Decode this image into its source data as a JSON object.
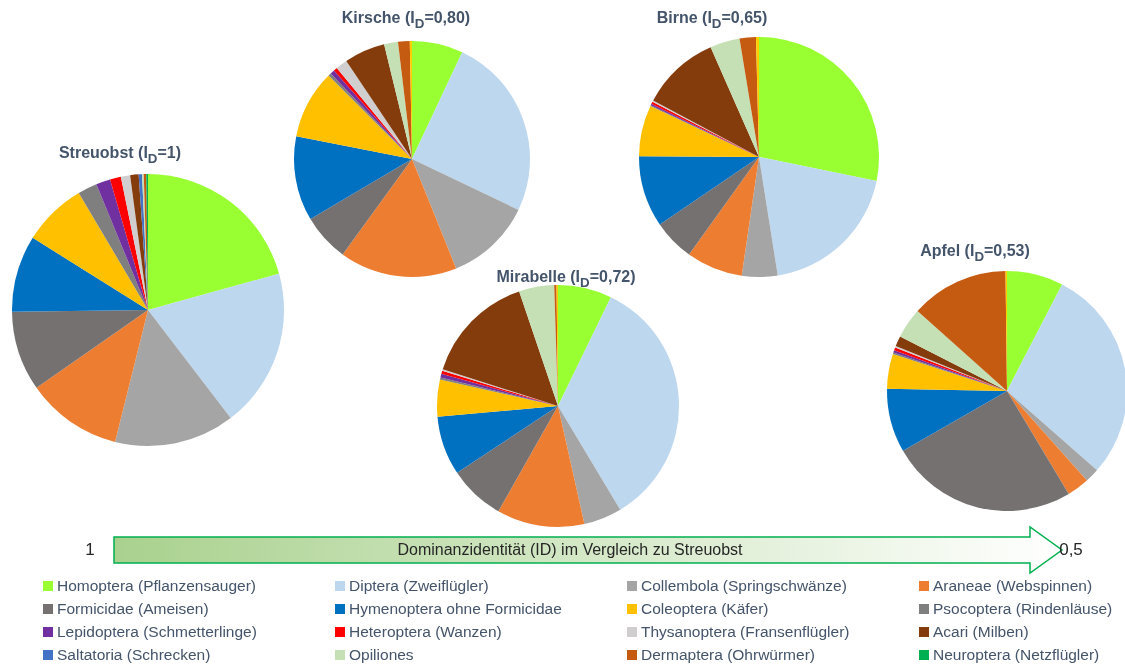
{
  "chart_data": {
    "type": "pie",
    "categories": [
      "Homoptera (Pflanzensauger)",
      "Diptera (Zweiflügler)",
      "Collembola (Springschwänze)",
      "Araneae (Webspinnen)",
      "Formicidae (Ameisen)",
      "Hymenoptera ohne Formicidae",
      "Coleoptera (Käfer)",
      "Psocoptera (Rindenläuse)",
      "Lepidoptera (Schmetterlinge)",
      "Heteroptera (Wanzen)",
      "Thysanoptera (Fransenflügler)",
      "Acari (Milben)",
      "Saltatoria (Schrecken)",
      "Opiliones",
      "Dermaptera (Ohrwürmer)",
      "Neuroptera (Netzflügler)",
      null
    ],
    "colors": [
      "#99ff33",
      "#bdd7ee",
      "#a5a5a5",
      "#ed7d31",
      "#767171",
      "#0070c0",
      "#ffc000",
      "#7f7f7f",
      "#7030a0",
      "#ff0000",
      "#d0cece",
      "#843c0c",
      "#4472c4",
      "#c5e0b4",
      "#c55a11",
      "#00b050",
      "#ffcc00"
    ],
    "series": [
      {
        "name": "Streuobst (I$_{D}$=1)",
        "values": [
          20.7,
          18.9,
          14.3,
          11.4,
          9.5,
          9.1,
          7.6,
          2.3,
          1.7,
          1.3,
          1.1,
          1.0,
          0.4,
          0.2,
          0.3,
          0.2,
          0
        ]
      },
      {
        "name": "Kirsche (I$_{D}$=0,80)",
        "values": [
          7.0,
          25.1,
          11.8,
          16.1,
          6.5,
          11.6,
          9.4,
          0.4,
          0.6,
          0.5,
          1.6,
          5.6,
          0,
          1.9,
          1.6,
          0,
          0.3
        ]
      },
      {
        "name": "Birne (I$_{D}$=0,65)",
        "values": [
          28.2,
          19.3,
          4.8,
          7.6,
          5.6,
          9.6,
          6.9,
          0.1,
          0.2,
          0.3,
          0.2,
          10.6,
          0,
          4.0,
          2.2,
          0,
          0.4
        ]
      },
      {
        "name": "Mirabelle (I$_{D}$=0,72)",
        "values": [
          7.2,
          34.2,
          5.1,
          11.7,
          7.5,
          7.9,
          4.9,
          0.3,
          0.5,
          0.4,
          0.2,
          14.9,
          0,
          4.7,
          0.3,
          0,
          0.2
        ]
      },
      {
        "name": "Apfel (I$_{D}$=0,53)",
        "values": [
          7.6,
          28.9,
          1.9,
          3.0,
          25.3,
          8.6,
          4.7,
          0.2,
          0.3,
          0.4,
          0.2,
          1.4,
          0,
          4.1,
          13.2,
          0,
          0.2
        ]
      }
    ],
    "legend": "bottom",
    "annotations": [
      "1",
      "Dominanzidentität (ID) im Vergleich zu Streuobst",
      "0,5"
    ]
  }
}
